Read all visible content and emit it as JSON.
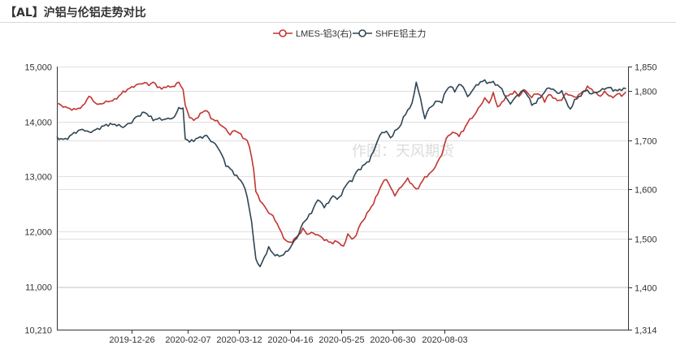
{
  "header": {
    "title": "【AL】沪铝与伦铝走势对比"
  },
  "watermark": "作图：天风期货",
  "chart_data": {
    "type": "line",
    "title": "【AL】沪铝与伦铝走势对比",
    "legend_position": "top-center",
    "grid": true,
    "x_tick_labels": [
      "2019-12-26",
      "2020-02-07",
      "2020-03-12",
      "2020-04-16",
      "2020-05-25",
      "2020-06-30",
      "2020-08-03"
    ],
    "x_ticks": [
      {
        "date": "2019-12-26",
        "index": 35
      },
      {
        "date": "2020-02-07",
        "index": 61
      },
      {
        "date": "2020-03-12",
        "index": 85
      },
      {
        "date": "2020-04-16",
        "index": 109
      },
      {
        "date": "2020-05-25",
        "index": 133
      },
      {
        "date": "2020-06-30",
        "index": 157
      },
      {
        "date": "2020-08-03",
        "index": 181
      }
    ],
    "left_axis": {
      "ylim": [
        10210,
        15000
      ],
      "tick_labels": [
        "10,210",
        "11,000",
        "12,000",
        "13,000",
        "14,000",
        "15,000"
      ],
      "tick_values": [
        10210,
        11000,
        12000,
        13000,
        14000,
        15000
      ]
    },
    "right_axis": {
      "ylim": [
        1314,
        1850
      ],
      "tick_labels": [
        "1,314",
        "1,400",
        "1,500",
        "1,600",
        "1,700",
        "1,800",
        "1,850"
      ],
      "tick_values": [
        1314,
        1400,
        1500,
        1600,
        1700,
        1800,
        1850
      ]
    },
    "series": [
      {
        "name": "LMES-铝3(右)",
        "axis": "right",
        "color": "#c23531",
        "anchors": [
          [
            0,
            1775
          ],
          [
            4,
            1767
          ],
          [
            8,
            1762
          ],
          [
            12,
            1768
          ],
          [
            15,
            1790
          ],
          [
            19,
            1772
          ],
          [
            23,
            1778
          ],
          [
            27,
            1782
          ],
          [
            31,
            1798
          ],
          [
            35,
            1808
          ],
          [
            37,
            1812
          ],
          [
            39,
            1815
          ],
          [
            41,
            1817
          ],
          [
            43,
            1813
          ],
          [
            45,
            1818
          ],
          [
            47,
            1810
          ],
          [
            49,
            1804
          ],
          [
            51,
            1810
          ],
          [
            53,
            1808
          ],
          [
            55,
            1811
          ],
          [
            57,
            1818
          ],
          [
            59,
            1804
          ],
          [
            60,
            1770
          ],
          [
            62,
            1748
          ],
          [
            64,
            1740
          ],
          [
            66,
            1748
          ],
          [
            68,
            1757
          ],
          [
            70,
            1762
          ],
          [
            72,
            1745
          ],
          [
            75,
            1738
          ],
          [
            77,
            1730
          ],
          [
            79,
            1722
          ],
          [
            81,
            1712
          ],
          [
            83,
            1720
          ],
          [
            85,
            1716
          ],
          [
            87,
            1705
          ],
          [
            89,
            1700
          ],
          [
            91,
            1668
          ],
          [
            92,
            1640
          ],
          [
            93,
            1595
          ],
          [
            95,
            1578
          ],
          [
            97,
            1565
          ],
          [
            99,
            1553
          ],
          [
            101,
            1545
          ],
          [
            103,
            1530
          ],
          [
            105,
            1510
          ],
          [
            107,
            1495
          ],
          [
            109,
            1491
          ],
          [
            111,
            1498
          ],
          [
            113,
            1507
          ],
          [
            115,
            1519
          ],
          [
            117,
            1509
          ],
          [
            119,
            1511
          ],
          [
            121,
            1509
          ],
          [
            123,
            1504
          ],
          [
            125,
            1498
          ],
          [
            127,
            1493
          ],
          [
            129,
            1491
          ],
          [
            131,
            1494
          ],
          [
            133,
            1487
          ],
          [
            134,
            1482
          ],
          [
            135,
            1495
          ],
          [
            136,
            1510
          ],
          [
            138,
            1497
          ],
          [
            140,
            1508
          ],
          [
            142,
            1530
          ],
          [
            144,
            1542
          ],
          [
            146,
            1558
          ],
          [
            148,
            1571
          ],
          [
            150,
            1592
          ],
          [
            152,
            1611
          ],
          [
            154,
            1622
          ],
          [
            156,
            1603
          ],
          [
            158,
            1588
          ],
          [
            160,
            1600
          ],
          [
            162,
            1611
          ],
          [
            164,
            1621
          ],
          [
            166,
            1610
          ],
          [
            168,
            1599
          ],
          [
            170,
            1610
          ],
          [
            172,
            1625
          ],
          [
            174,
            1630
          ],
          [
            176,
            1640
          ],
          [
            178,
            1655
          ],
          [
            180,
            1672
          ],
          [
            182,
            1703
          ],
          [
            184,
            1714
          ],
          [
            186,
            1715
          ],
          [
            188,
            1710
          ],
          [
            190,
            1719
          ],
          [
            192,
            1737
          ],
          [
            194,
            1745
          ],
          [
            196,
            1757
          ],
          [
            198,
            1771
          ],
          [
            200,
            1785
          ],
          [
            202,
            1776
          ],
          [
            204,
            1795
          ],
          [
            206,
            1768
          ],
          [
            208,
            1775
          ],
          [
            210,
            1790
          ],
          [
            212,
            1792
          ],
          [
            214,
            1800
          ],
          [
            216,
            1788
          ],
          [
            218,
            1803
          ],
          [
            220,
            1797
          ],
          [
            222,
            1787
          ],
          [
            224,
            1796
          ],
          [
            226,
            1792
          ],
          [
            228,
            1780
          ],
          [
            230,
            1793
          ],
          [
            232,
            1788
          ],
          [
            234,
            1780
          ],
          [
            236,
            1783
          ],
          [
            238,
            1795
          ],
          [
            240,
            1792
          ],
          [
            242,
            1787
          ],
          [
            244,
            1792
          ],
          [
            246,
            1799
          ],
          [
            248,
            1808
          ],
          [
            250,
            1804
          ],
          [
            252,
            1795
          ],
          [
            254,
            1790
          ],
          [
            256,
            1798
          ],
          [
            258,
            1792
          ],
          [
            260,
            1786
          ],
          [
            262,
            1796
          ],
          [
            264,
            1790
          ],
          [
            266,
            1798
          ]
        ]
      },
      {
        "name": "SHFE铝主力",
        "axis": "left",
        "color": "#2f4554",
        "anchors": [
          [
            0,
            13700
          ],
          [
            4,
            13670
          ],
          [
            8,
            13790
          ],
          [
            12,
            13860
          ],
          [
            15,
            13800
          ],
          [
            19,
            13860
          ],
          [
            23,
            13940
          ],
          [
            27,
            13950
          ],
          [
            31,
            13900
          ],
          [
            35,
            13990
          ],
          [
            37,
            14080
          ],
          [
            39,
            14120
          ],
          [
            41,
            14170
          ],
          [
            43,
            14110
          ],
          [
            45,
            14030
          ],
          [
            47,
            14050
          ],
          [
            49,
            14040
          ],
          [
            51,
            14040
          ],
          [
            53,
            14060
          ],
          [
            55,
            14070
          ],
          [
            57,
            14260
          ],
          [
            59,
            14220
          ],
          [
            60,
            13700
          ],
          [
            62,
            13630
          ],
          [
            64,
            13660
          ],
          [
            66,
            13700
          ],
          [
            68,
            13720
          ],
          [
            70,
            13740
          ],
          [
            72,
            13650
          ],
          [
            75,
            13550
          ],
          [
            77,
            13400
          ],
          [
            79,
            13210
          ],
          [
            81,
            13140
          ],
          [
            83,
            13050
          ],
          [
            85,
            12960
          ],
          [
            87,
            12880
          ],
          [
            89,
            12620
          ],
          [
            91,
            12190
          ],
          [
            92,
            11820
          ],
          [
            93,
            11500
          ],
          [
            95,
            11350
          ],
          [
            97,
            11530
          ],
          [
            99,
            11700
          ],
          [
            101,
            11600
          ],
          [
            103,
            11550
          ],
          [
            105,
            11560
          ],
          [
            107,
            11610
          ],
          [
            109,
            11700
          ],
          [
            111,
            11820
          ],
          [
            113,
            11940
          ],
          [
            115,
            12150
          ],
          [
            117,
            12240
          ],
          [
            119,
            12340
          ],
          [
            121,
            12520
          ],
          [
            123,
            12570
          ],
          [
            125,
            12430
          ],
          [
            127,
            12540
          ],
          [
            129,
            12640
          ],
          [
            131,
            12600
          ],
          [
            133,
            12640
          ],
          [
            134,
            12780
          ],
          [
            135,
            12830
          ],
          [
            136,
            12880
          ],
          [
            138,
            12930
          ],
          [
            140,
            13080
          ],
          [
            142,
            13150
          ],
          [
            144,
            13220
          ],
          [
            146,
            13290
          ],
          [
            148,
            13450
          ],
          [
            150,
            13670
          ],
          [
            152,
            13800
          ],
          [
            154,
            13820
          ],
          [
            156,
            13700
          ],
          [
            158,
            13820
          ],
          [
            160,
            13890
          ],
          [
            162,
            14060
          ],
          [
            164,
            14210
          ],
          [
            166,
            14310
          ],
          [
            168,
            14720
          ],
          [
            170,
            14400
          ],
          [
            172,
            14060
          ],
          [
            174,
            14240
          ],
          [
            176,
            14310
          ],
          [
            178,
            14380
          ],
          [
            180,
            14350
          ],
          [
            182,
            14580
          ],
          [
            184,
            14640
          ],
          [
            186,
            14560
          ],
          [
            188,
            14670
          ],
          [
            190,
            14640
          ],
          [
            192,
            14440
          ],
          [
            194,
            14560
          ],
          [
            196,
            14650
          ],
          [
            198,
            14720
          ],
          [
            200,
            14740
          ],
          [
            202,
            14700
          ],
          [
            204,
            14720
          ],
          [
            206,
            14650
          ],
          [
            208,
            14600
          ],
          [
            210,
            14420
          ],
          [
            212,
            14330
          ],
          [
            214,
            14420
          ],
          [
            216,
            14510
          ],
          [
            218,
            14560
          ],
          [
            220,
            14490
          ],
          [
            222,
            14300
          ],
          [
            224,
            14350
          ],
          [
            226,
            14440
          ],
          [
            228,
            14540
          ],
          [
            230,
            14620
          ],
          [
            232,
            14580
          ],
          [
            234,
            14520
          ],
          [
            236,
            14540
          ],
          [
            238,
            14380
          ],
          [
            240,
            14200
          ],
          [
            242,
            14400
          ],
          [
            244,
            14430
          ],
          [
            246,
            14540
          ],
          [
            248,
            14560
          ],
          [
            250,
            14500
          ],
          [
            252,
            14530
          ],
          [
            254,
            14560
          ],
          [
            256,
            14600
          ],
          [
            258,
            14620
          ],
          [
            260,
            14580
          ],
          [
            262,
            14560
          ],
          [
            264,
            14590
          ],
          [
            266,
            14600
          ]
        ]
      }
    ]
  }
}
